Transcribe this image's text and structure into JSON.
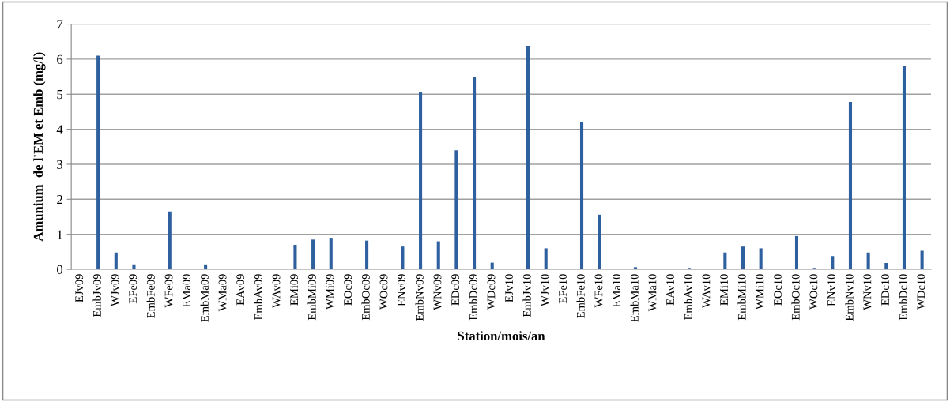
{
  "chart_data": {
    "type": "bar",
    "xlabel": "Station/mois/an",
    "ylabel": "Amunium  de l'EM et Emb (mg/l)",
    "categories": [
      "EJv09",
      "EmbJv09",
      "WJv09",
      "EFe09",
      "EmbFe09",
      "WFe09",
      "EMa09",
      "EmbMa09",
      "WMa09",
      "EAv09",
      "EmbAv09",
      "WAv09",
      "EMi09",
      "EmbMi09",
      "WMi09",
      "EOc09",
      "EmbOc09",
      "WOc09",
      "ENv09",
      "EmbNv09",
      "WNv09",
      "EDc09",
      "EmbDc09",
      "WDc09",
      "EJv10",
      "EmbJv10",
      "WJv10",
      "EFe10",
      "EmbFe10",
      "WFe10",
      "EMa10",
      "EmbMa10",
      "WMa10",
      "EAv10",
      "EmbAv10",
      "WAv10",
      "EMi10",
      "EmbMi10",
      "WMi10",
      "EOc10",
      "EmbOc10",
      "WOc10",
      "ENv10",
      "EmbNv10",
      "WNv10",
      "EDc10",
      "EmbDc10",
      "WDc10"
    ],
    "values": [
      null,
      6.1,
      0.48,
      0.14,
      0,
      1.65,
      null,
      0.14,
      null,
      0,
      null,
      null,
      0.7,
      0.85,
      0.9,
      0,
      0.82,
      0,
      0.65,
      5.07,
      0.8,
      3.4,
      5.48,
      0.19,
      null,
      6.38,
      0.6,
      0,
      4.2,
      1.56,
      0,
      0.06,
      0,
      0,
      0.04,
      null,
      0.48,
      0.65,
      0.6,
      0,
      0.95,
      0.04,
      0.38,
      4.78,
      0.48,
      0.18,
      5.8,
      0.53
    ],
    "color": "#2e5f9e",
    "ylim": [
      0,
      7
    ],
    "yticks": [
      0,
      1,
      2,
      3,
      4,
      5,
      6,
      7
    ],
    "grid": "y"
  }
}
